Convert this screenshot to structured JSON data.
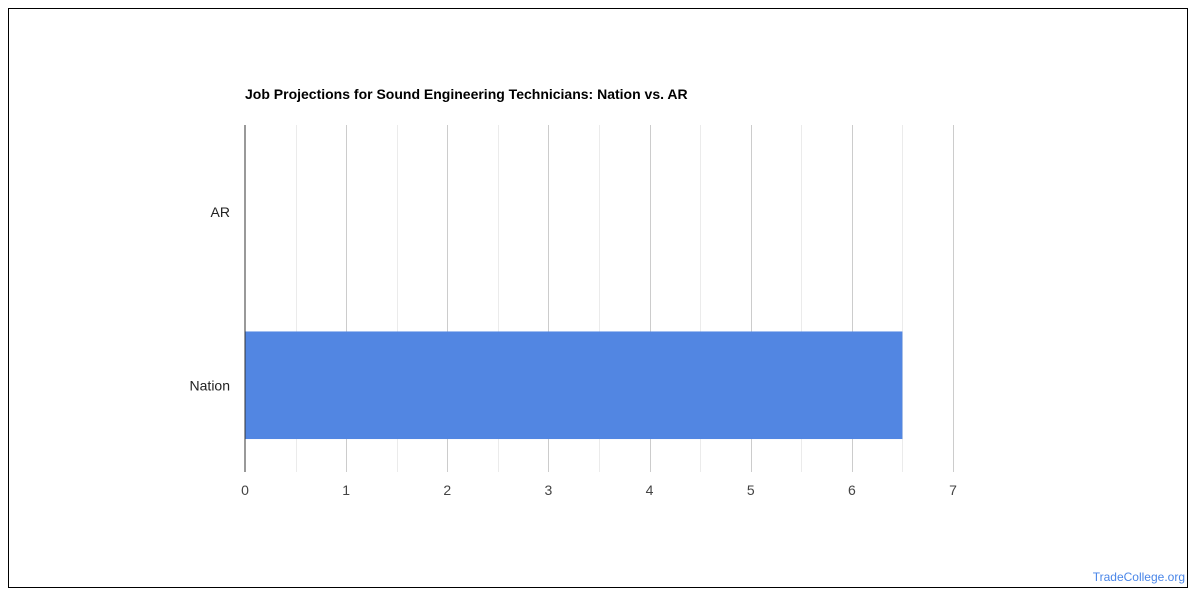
{
  "chart_data": {
    "type": "bar",
    "orientation": "horizontal",
    "title": "Job Projections for Sound Engineering Technicians: Nation vs. AR",
    "categories": [
      "AR",
      "Nation"
    ],
    "values": [
      0,
      6.5
    ],
    "xlim": [
      0,
      7
    ],
    "x_ticks": [
      "0",
      "1",
      "2",
      "3",
      "4",
      "5",
      "6",
      "7"
    ],
    "minor_gridlines": true,
    "bar_color": "#5286e2",
    "gridline_color": "#cccccc",
    "minor_gridline_color": "#ebebeb",
    "legend": "none"
  },
  "watermark": "TradeCollege.org"
}
